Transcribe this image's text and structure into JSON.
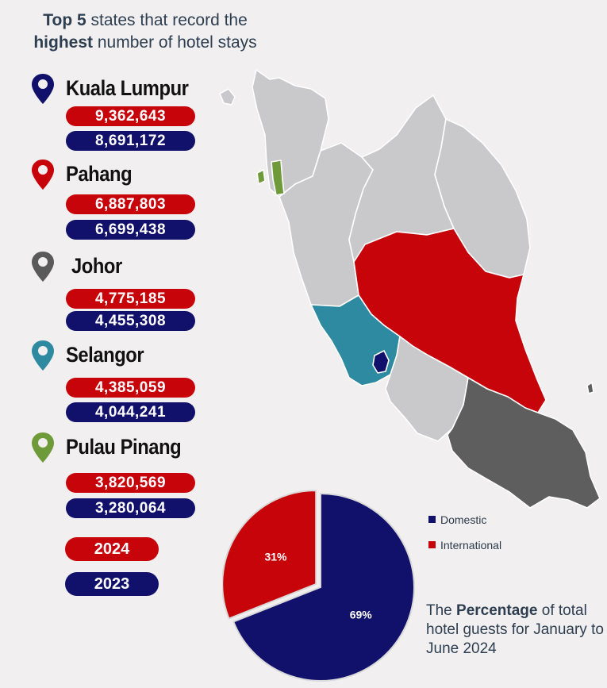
{
  "title": {
    "part1_bold": "Top 5",
    "part1_rest": " states that record the",
    "part2_bold": "highest",
    "part2_rest": " number of hotel stays"
  },
  "states": [
    {
      "name": "Kuala Lumpur",
      "value_2024": "9,362,643",
      "value_2023": "8,691,172",
      "pin_color": "#11116b"
    },
    {
      "name": "Pahang",
      "value_2024": "6,887,803",
      "value_2023": "6,699,438",
      "pin_color": "#c8040b"
    },
    {
      "name": "Johor",
      "value_2024": "4,775,185",
      "value_2023": "4,455,308",
      "pin_color": "#5a5a5a"
    },
    {
      "name": "Selangor",
      "value_2024": "4,385,059",
      "value_2023": "4,044,241",
      "pin_color": "#2e8aa0"
    },
    {
      "name": "Pulau Pinang",
      "value_2024": "3,820,569",
      "value_2023": "3,280,064",
      "pin_color": "#6f9a3a"
    }
  ],
  "year_legend": {
    "year_2024": "2024",
    "year_2023": "2023"
  },
  "colors": {
    "red": "#c8040b",
    "navy": "#11116b",
    "grey_state": "#c9c9cb",
    "johor": "#5e5e5e",
    "selangor": "#2e8aa0",
    "penang": "#6f9a3a"
  },
  "chart_data": {
    "type": "pie",
    "slices": [
      {
        "label": "Domestic",
        "value": 69,
        "text": "69%",
        "color": "#11116b"
      },
      {
        "label": "International",
        "value": 31,
        "text": "31%",
        "color": "#c8040b"
      }
    ],
    "legend_position": "right"
  },
  "note": {
    "pre": "The ",
    "bold": "Percentage",
    "post": " of total hotel guests for January to June 2024"
  }
}
